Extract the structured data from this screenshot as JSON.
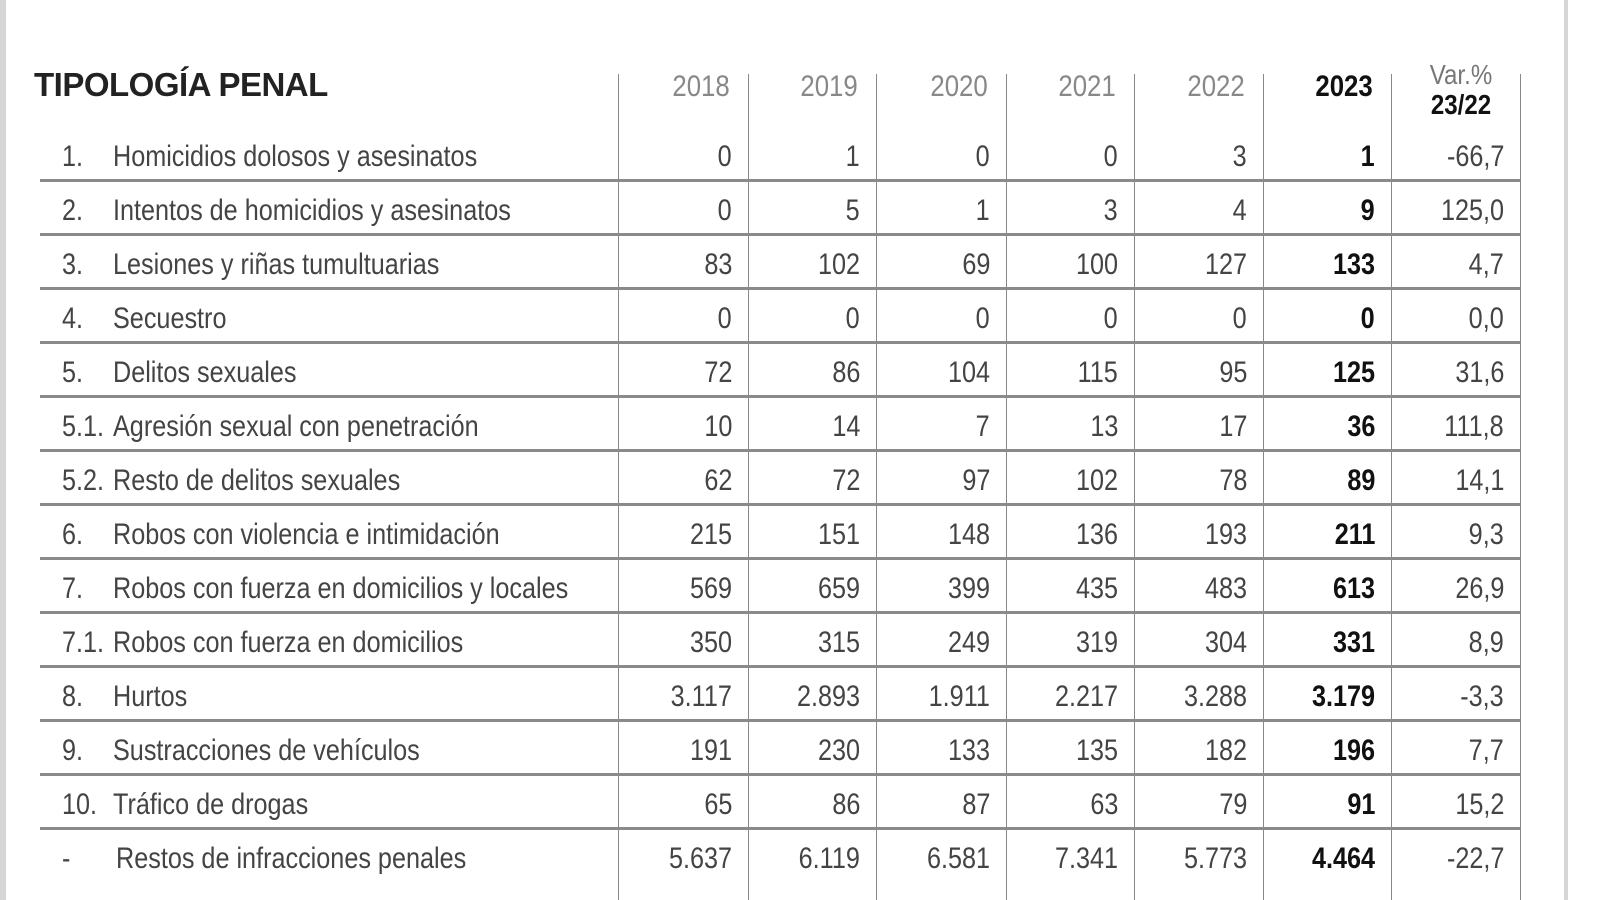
{
  "table": {
    "title": "TIPOLOGÍA PENAL",
    "columns": [
      "2018",
      "2019",
      "2020",
      "2021",
      "2022",
      "2023"
    ],
    "var_header": [
      "Var.%",
      "23/22"
    ],
    "rows": [
      {
        "num": "1.",
        "label": "Homicidios dolosos y asesinatos",
        "values": [
          "0",
          "1",
          "0",
          "0",
          "3",
          "1"
        ],
        "var": "-66,7"
      },
      {
        "num": "2.",
        "label": "Intentos de homicidios y asesinatos",
        "values": [
          "0",
          "5",
          "1",
          "3",
          "4",
          "9"
        ],
        "var": "125,0"
      },
      {
        "num": "3.",
        "label": "Lesiones y riñas tumultuarias",
        "values": [
          "83",
          "102",
          "69",
          "100",
          "127",
          "133"
        ],
        "var": "4,7"
      },
      {
        "num": "4.",
        "label": "Secuestro",
        "values": [
          "0",
          "0",
          "0",
          "0",
          "0",
          "0"
        ],
        "var": "0,0"
      },
      {
        "num": "5.",
        "label": "Delitos sexuales",
        "values": [
          "72",
          "86",
          "104",
          "115",
          "95",
          "125"
        ],
        "var": "31,6"
      },
      {
        "num": "5.1.",
        "label": "Agresión sexual con penetración",
        "values": [
          "10",
          "14",
          "7",
          "13",
          "17",
          "36"
        ],
        "var": "111,8"
      },
      {
        "num": "5.2.",
        "label": "Resto de delitos sexuales",
        "values": [
          "62",
          "72",
          "97",
          "102",
          "78",
          "89"
        ],
        "var": "14,1"
      },
      {
        "num": "6.",
        "label": "Robos con violencia e intimidación",
        "values": [
          "215",
          "151",
          "148",
          "136",
          "193",
          "211"
        ],
        "var": "9,3"
      },
      {
        "num": "7.",
        "label": "Robos con fuerza en domicilios y locales",
        "values": [
          "569",
          "659",
          "399",
          "435",
          "483",
          "613"
        ],
        "var": "26,9"
      },
      {
        "num": "7.1.",
        "label": "Robos con fuerza en domicilios",
        "values": [
          "350",
          "315",
          "249",
          "319",
          "304",
          "331"
        ],
        "var": "8,9"
      },
      {
        "num": "8.",
        "label": "Hurtos",
        "values": [
          "3.117",
          "2.893",
          "1.911",
          "2.217",
          "3.288",
          "3.179"
        ],
        "var": "-3,3"
      },
      {
        "num": "9.",
        "label": "Sustracciones de vehículos",
        "values": [
          "191",
          "230",
          "133",
          "135",
          "182",
          "196"
        ],
        "var": "7,7"
      },
      {
        "num": "10.",
        "label": "Tráfico de drogas",
        "values": [
          "65",
          "86",
          "87",
          "63",
          "79",
          "91"
        ],
        "var": "15,2"
      },
      {
        "num": "-",
        "label": "Restos de infracciones penales",
        "values": [
          "5.637",
          "6.119",
          "6.581",
          "7.341",
          "5.773",
          "4.464"
        ],
        "var": "-22,7"
      }
    ]
  }
}
